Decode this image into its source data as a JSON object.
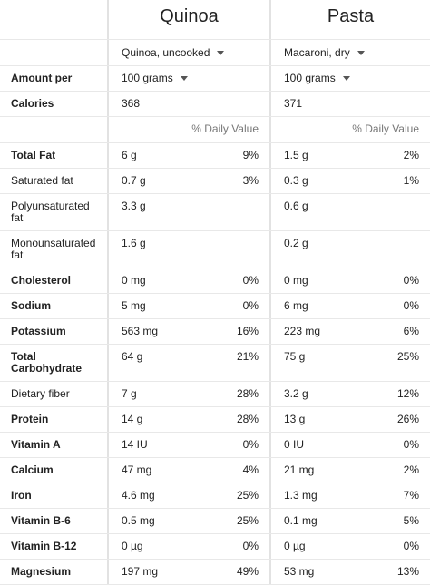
{
  "header": {
    "columns": [
      "Quinoa",
      "Pasta"
    ]
  },
  "selectors": [
    "Quinoa, uncooked",
    "Macaroni, dry"
  ],
  "amount_per": {
    "label": "Amount per",
    "values": [
      "100 grams",
      "100 grams"
    ]
  },
  "calories": {
    "label": "Calories",
    "values": [
      "368",
      "371"
    ]
  },
  "daily_value_label": "% Daily Value",
  "nutrients": [
    {
      "name": "Total Fat",
      "bold": true,
      "values": [
        {
          "amount": "6 g",
          "dv": "9%"
        },
        {
          "amount": "1.5 g",
          "dv": "2%"
        }
      ]
    },
    {
      "name": "Saturated fat",
      "bold": false,
      "values": [
        {
          "amount": "0.7 g",
          "dv": "3%"
        },
        {
          "amount": "0.3 g",
          "dv": "1%"
        }
      ]
    },
    {
      "name": "Polyunsaturated fat",
      "bold": false,
      "values": [
        {
          "amount": "3.3 g"
        },
        {
          "amount": "0.6 g"
        }
      ]
    },
    {
      "name": "Monounsaturated fat",
      "bold": false,
      "values": [
        {
          "amount": "1.6 g"
        },
        {
          "amount": "0.2 g"
        }
      ]
    },
    {
      "name": "Cholesterol",
      "bold": true,
      "values": [
        {
          "amount": "0 mg",
          "dv": "0%"
        },
        {
          "amount": "0 mg",
          "dv": "0%"
        }
      ]
    },
    {
      "name": "Sodium",
      "bold": true,
      "values": [
        {
          "amount": "5 mg",
          "dv": "0%"
        },
        {
          "amount": "6 mg",
          "dv": "0%"
        }
      ]
    },
    {
      "name": "Potassium",
      "bold": true,
      "values": [
        {
          "amount": "563 mg",
          "dv": "16%"
        },
        {
          "amount": "223 mg",
          "dv": "6%"
        }
      ]
    },
    {
      "name": "Total Carbohydrate",
      "bold": true,
      "values": [
        {
          "amount": "64 g",
          "dv": "21%"
        },
        {
          "amount": "75 g",
          "dv": "25%"
        }
      ]
    },
    {
      "name": "Dietary fiber",
      "bold": false,
      "values": [
        {
          "amount": "7 g",
          "dv": "28%"
        },
        {
          "amount": "3.2 g",
          "dv": "12%"
        }
      ]
    },
    {
      "name": "Protein",
      "bold": true,
      "values": [
        {
          "amount": "14 g",
          "dv": "28%"
        },
        {
          "amount": "13 g",
          "dv": "26%"
        }
      ]
    },
    {
      "name": "Vitamin A",
      "bold": true,
      "values": [
        {
          "amount": "14 IU",
          "dv": "0%"
        },
        {
          "amount": "0 IU",
          "dv": "0%"
        }
      ]
    },
    {
      "name": "Calcium",
      "bold": true,
      "values": [
        {
          "amount": "47 mg",
          "dv": "4%"
        },
        {
          "amount": "21 mg",
          "dv": "2%"
        }
      ]
    },
    {
      "name": "Iron",
      "bold": true,
      "values": [
        {
          "amount": "4.6 mg",
          "dv": "25%"
        },
        {
          "amount": "1.3 mg",
          "dv": "7%"
        }
      ]
    },
    {
      "name": "Vitamin B-6",
      "bold": true,
      "values": [
        {
          "amount": "0.5 mg",
          "dv": "25%"
        },
        {
          "amount": "0.1 mg",
          "dv": "5%"
        }
      ]
    },
    {
      "name": "Vitamin B-12",
      "bold": true,
      "values": [
        {
          "amount": "0 µg",
          "dv": "0%"
        },
        {
          "amount": "0 µg",
          "dv": "0%"
        }
      ]
    },
    {
      "name": "Magnesium",
      "bold": true,
      "values": [
        {
          "amount": "197 mg",
          "dv": "49%"
        },
        {
          "amount": "53 mg",
          "dv": "13%"
        }
      ]
    }
  ]
}
